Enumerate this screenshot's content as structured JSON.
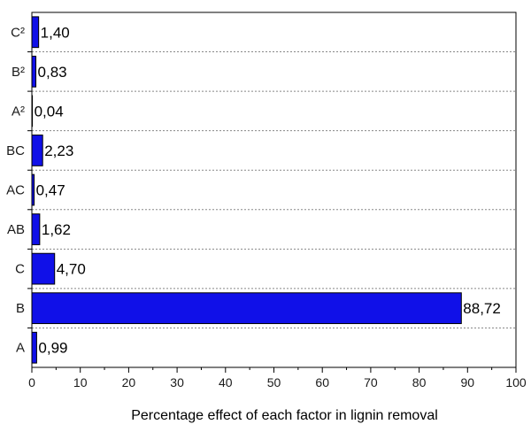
{
  "chart_data": {
    "type": "bar",
    "orientation": "horizontal",
    "categories": [
      "C²",
      "B²",
      "A²",
      "BC",
      "AC",
      "AB",
      "C",
      "B",
      "A"
    ],
    "values": [
      1.4,
      0.83,
      0.04,
      2.23,
      0.47,
      1.62,
      4.7,
      88.72,
      0.99
    ],
    "value_labels": [
      "1,40",
      "0,83",
      "0,04",
      "2,23",
      "0,47",
      "1,62",
      "4,70",
      "88,72",
      "0,99"
    ],
    "title": "",
    "xlabel": "Percentage effect of each factor in lignin removal",
    "ylabel": "",
    "xlim": [
      0,
      100
    ],
    "x_ticks": [
      0,
      10,
      20,
      30,
      40,
      50,
      60,
      70,
      80,
      90,
      100
    ],
    "grid": "horizontal dashed separators between categories",
    "bar_color": "#1010e8",
    "bar_edge_color": "#000000"
  }
}
